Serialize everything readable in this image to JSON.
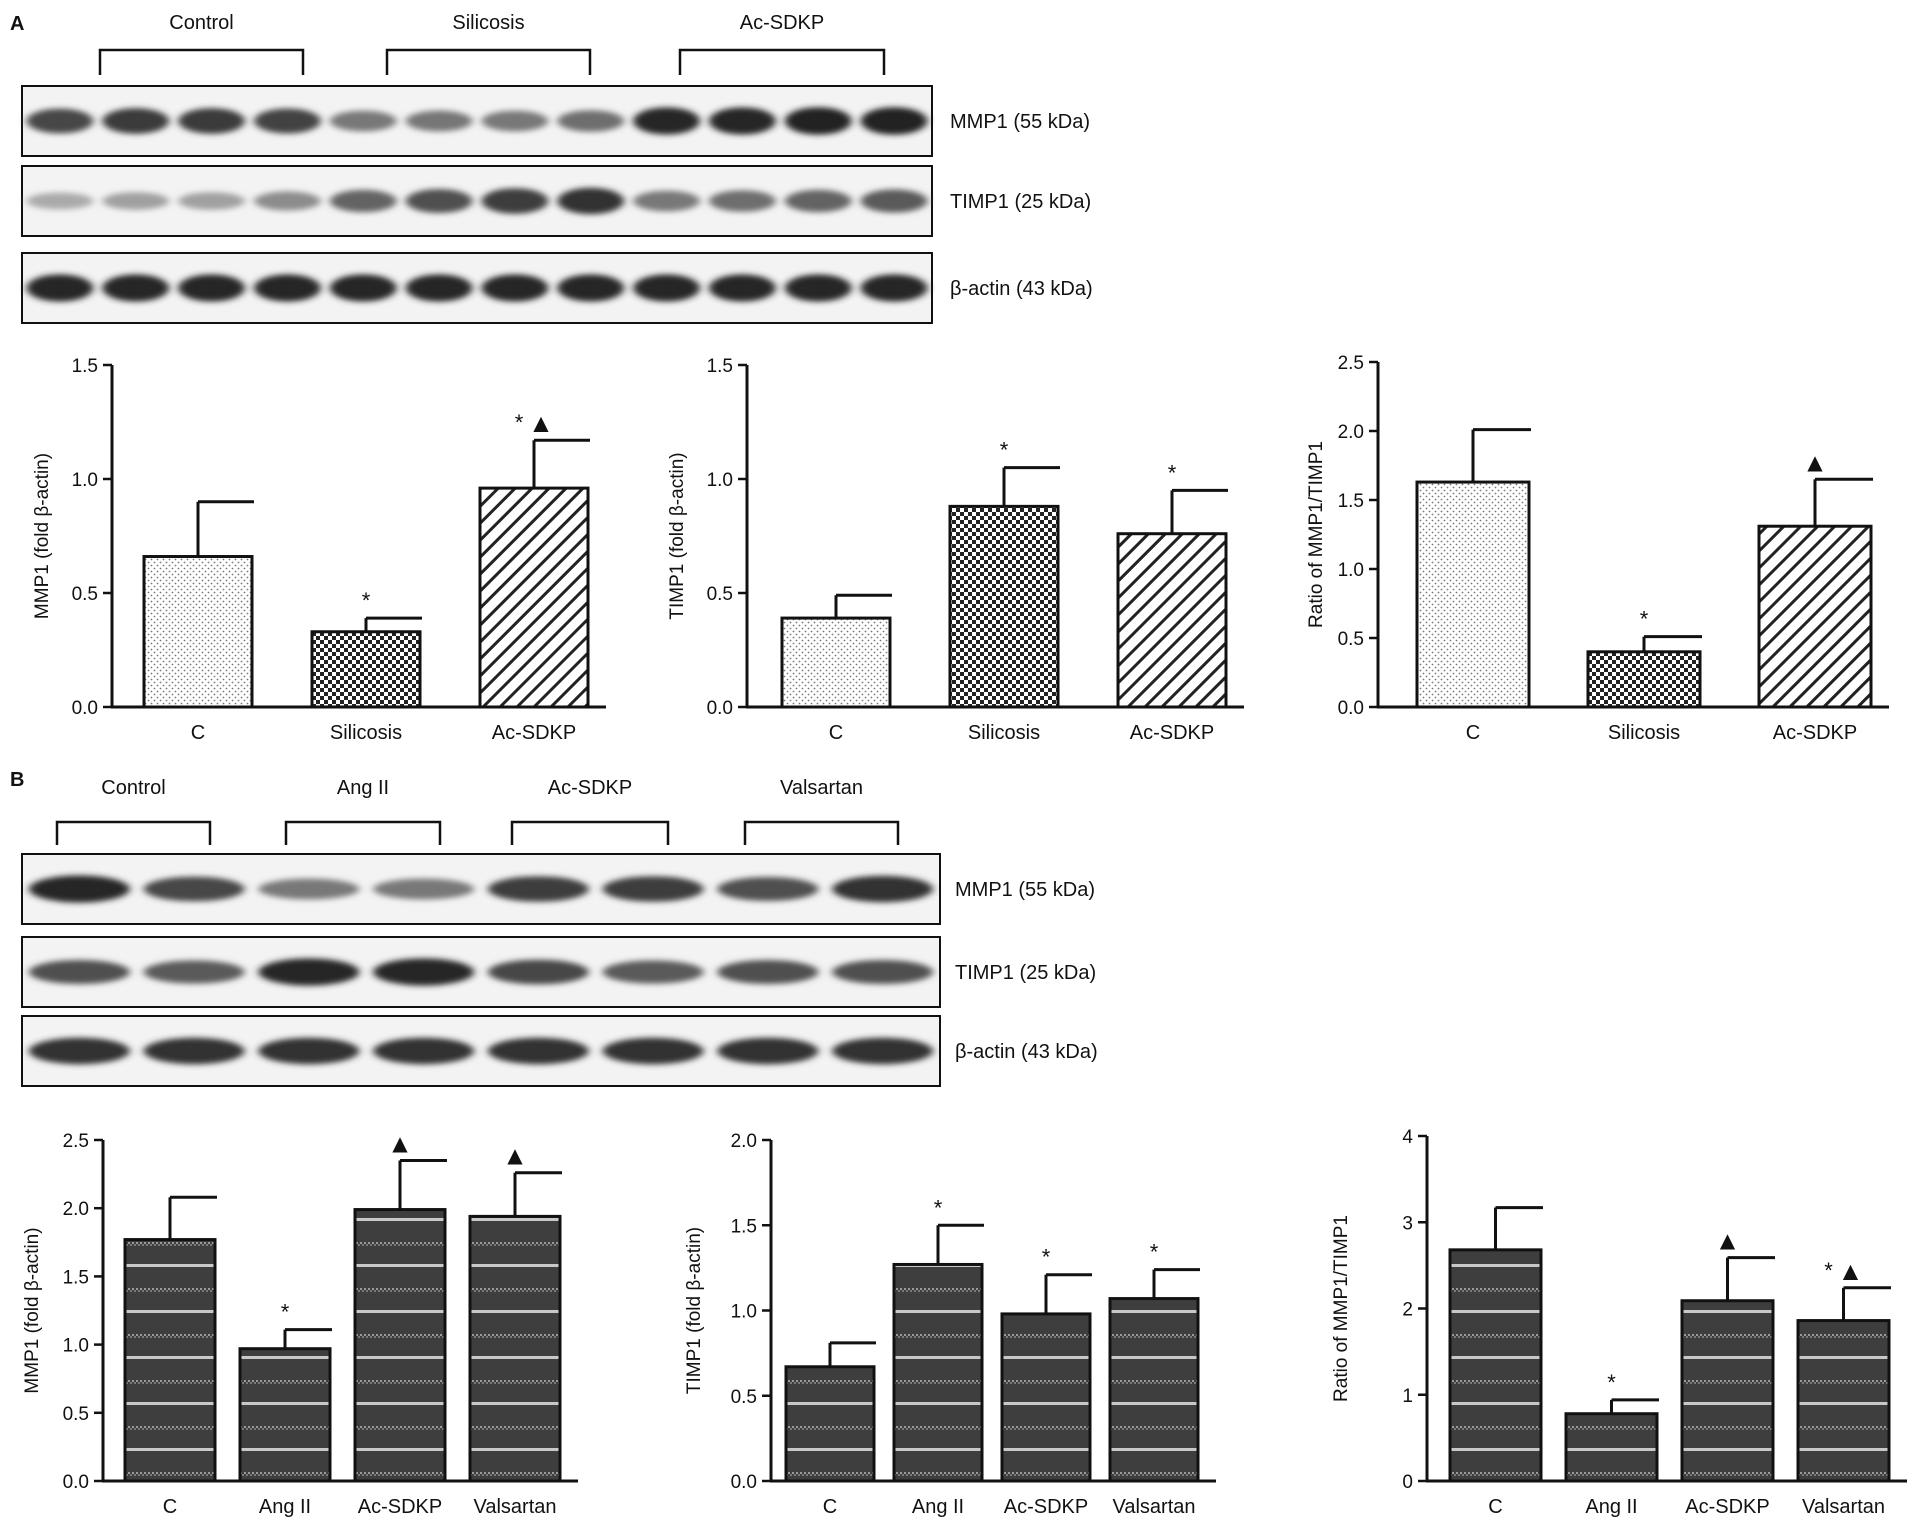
{
  "panels": [
    {
      "label": "A",
      "blot": {
        "groups": [
          "Control",
          "Silicosis",
          "Ac-SDKP"
        ],
        "bands": [
          "MMP1 (55 kDa)",
          "TIMP1 (25 kDa)",
          "β-actin (43 kDa)"
        ],
        "lanes": 12,
        "intensity": {
          "MMP1 (55 kDa)": [
            0.8,
            0.86,
            0.86,
            0.82,
            0.55,
            0.56,
            0.55,
            0.6,
            0.95,
            0.95,
            0.97,
            0.97
          ],
          "TIMP1 (25 kDa)": [
            0.3,
            0.35,
            0.35,
            0.45,
            0.65,
            0.75,
            0.85,
            0.9,
            0.55,
            0.6,
            0.65,
            0.7
          ],
          "β-actin (43 kDa)": [
            0.95,
            0.95,
            0.95,
            0.95,
            0.95,
            0.95,
            0.95,
            0.95,
            0.95,
            0.95,
            0.95,
            0.95
          ]
        }
      }
    },
    {
      "label": "B",
      "blot": {
        "groups": [
          "Control",
          "Ang II",
          "Ac-SDKP",
          "Valsartan"
        ],
        "bands": [
          "MMP1 (55 kDa)",
          "TIMP1 (25 kDa)",
          "β-actin (43 kDa)"
        ],
        "lanes": 8,
        "intensity": {
          "MMP1 (55 kDa)": [
            0.95,
            0.8,
            0.55,
            0.55,
            0.85,
            0.85,
            0.75,
            0.9
          ],
          "TIMP1 (25 kDa)": [
            0.75,
            0.7,
            0.95,
            0.95,
            0.8,
            0.7,
            0.75,
            0.75
          ],
          "β-actin (43 kDa)": [
            0.9,
            0.9,
            0.9,
            0.9,
            0.9,
            0.9,
            0.9,
            0.9
          ]
        }
      }
    }
  ],
  "chart_data": [
    {
      "type": "bar",
      "panel": "A",
      "categories": [
        "C",
        "Silicosis",
        "Ac-SDKP"
      ],
      "values": [
        0.66,
        0.33,
        0.96
      ],
      "errors": [
        0.24,
        0.06,
        0.21
      ],
      "annotations": [
        "",
        "*",
        "*▲"
      ],
      "ylabel": "MMP1 (fold  β-actin)",
      "ylim": [
        0,
        1.5
      ],
      "yticks": [
        "0.0",
        "0.5",
        "1.0",
        "1.5"
      ],
      "fills": [
        "dots",
        "checker",
        "hatch"
      ]
    },
    {
      "type": "bar",
      "panel": "A",
      "categories": [
        "C",
        "Silicosis",
        "Ac-SDKP"
      ],
      "values": [
        0.39,
        0.88,
        0.76
      ],
      "errors": [
        0.1,
        0.17,
        0.19
      ],
      "annotations": [
        "",
        "*",
        "*"
      ],
      "ylabel": "TIMP1  (fold  β-actin)",
      "ylim": [
        0,
        1.5
      ],
      "yticks": [
        "0.0",
        "0.5",
        "1.0",
        "1.5"
      ],
      "fills": [
        "dots",
        "checker",
        "hatch"
      ]
    },
    {
      "type": "bar",
      "panel": "A",
      "categories": [
        "C",
        "Silicosis",
        "Ac-SDKP"
      ],
      "values": [
        1.63,
        0.4,
        1.31
      ],
      "errors": [
        0.38,
        0.11,
        0.34
      ],
      "annotations": [
        "",
        "*",
        "▲"
      ],
      "ylabel": "Ratio of MMP1/TIMP1",
      "ylim": [
        0,
        2.5
      ],
      "yticks": [
        "0.0",
        "0.5",
        "1.0",
        "1.5",
        "2.0",
        "2.5"
      ],
      "fills": [
        "dots",
        "checker",
        "hatch"
      ]
    },
    {
      "type": "bar",
      "panel": "B",
      "categories": [
        "C",
        "Ang II",
        "Ac-SDKP",
        "Valsartan"
      ],
      "values": [
        1.77,
        0.97,
        1.99,
        1.94
      ],
      "errors": [
        0.31,
        0.14,
        0.36,
        0.32
      ],
      "annotations": [
        "",
        "*",
        "▲",
        "▲"
      ],
      "ylabel": "MMP1 (fold β-actin)",
      "ylim": [
        0,
        2.5
      ],
      "yticks": [
        "0.0",
        "0.5",
        "1.0",
        "1.5",
        "2.0",
        "2.5"
      ],
      "fills": [
        "mesh",
        "mesh",
        "mesh",
        "mesh"
      ]
    },
    {
      "type": "bar",
      "panel": "B",
      "categories": [
        "C",
        "Ang II",
        "Ac-SDKP",
        "Valsartan"
      ],
      "values": [
        0.67,
        1.27,
        0.98,
        1.07
      ],
      "errors": [
        0.14,
        0.23,
        0.23,
        0.17
      ],
      "annotations": [
        "",
        "*",
        "*",
        "*"
      ],
      "ylabel": "TIMP1 (fold β-actin)",
      "ylim": [
        0,
        2.0
      ],
      "yticks": [
        "0.0",
        "0.5",
        "1.0",
        "1.5",
        "2.0"
      ],
      "fills": [
        "mesh",
        "mesh",
        "mesh",
        "mesh"
      ]
    },
    {
      "type": "bar",
      "panel": "B",
      "categories": [
        "C",
        "Ang II",
        "Ac-SDKP",
        "Valsartan"
      ],
      "values": [
        2.68,
        0.78,
        2.09,
        1.86
      ],
      "errors": [
        0.49,
        0.16,
        0.5,
        0.38
      ],
      "annotations": [
        "",
        "*",
        "▲",
        "*▲"
      ],
      "ylabel": "Ratio of MMP1/TIMP1",
      "ylim": [
        0,
        4
      ],
      "yticks": [
        "0",
        "1",
        "2",
        "3",
        "4"
      ],
      "fills": [
        "mesh",
        "mesh",
        "mesh",
        "mesh"
      ]
    }
  ]
}
